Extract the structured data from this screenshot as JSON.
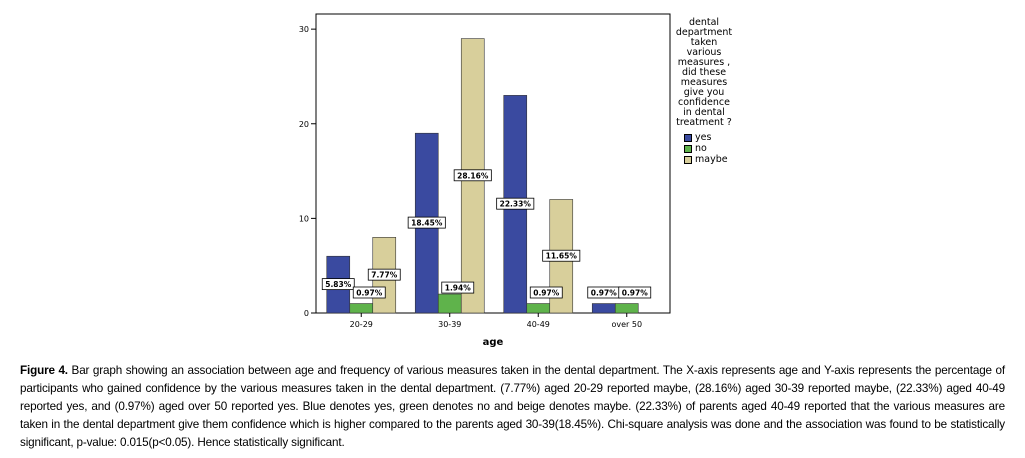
{
  "chart_data": {
    "type": "bar",
    "xlabel": "age",
    "ylabel": "",
    "ylim": [
      0,
      30
    ],
    "yticks": [
      0,
      10,
      20,
      30
    ],
    "categories": [
      "20-29",
      "30-39",
      "40-49",
      "over 50"
    ],
    "series": [
      {
        "name": "yes",
        "color": "#3a4aa0",
        "values": [
          6,
          19,
          23,
          1
        ],
        "labels": [
          "5.83%",
          "18.45%",
          "22.33%",
          "0.97%"
        ]
      },
      {
        "name": "no",
        "color": "#5fb34b",
        "values": [
          1,
          2,
          1,
          1
        ],
        "labels": [
          "0.97%",
          "1.94%",
          "0.97%",
          "0.97%"
        ]
      },
      {
        "name": "maybe",
        "color": "#d8cf9b",
        "values": [
          8,
          29,
          12,
          0
        ],
        "labels": [
          "7.77%",
          "28.16%",
          "11.65%",
          ""
        ]
      }
    ],
    "legend_title": "dental department taken various measures , did these measures give you confidence in dental treatment ?",
    "legend_title_lines": [
      "dental",
      "department",
      "taken",
      "various",
      "measures ,",
      "did these",
      "measures",
      "give you",
      "confidence",
      "in dental",
      "treatment ?"
    ],
    "legend_position": "right"
  },
  "caption": {
    "label": "Figure 4.",
    "text": " Bar graph showing an association between age and frequency of various measures taken in the dental department. The X-axis represents age and Y-axis represents the percentage of participants who gained confidence by the various measures taken in the dental department. (7.77%) aged 20-29 reported maybe, (28.16%) aged 30-39 reported maybe, (22.33%) aged 40-49 reported yes, and (0.97%) aged over 50 reported yes. Blue denotes yes, green denotes no and beige denotes maybe. (22.33%) of parents aged 40-49 reported that the various measures are taken in the dental department give them confidence which is higher compared to the parents aged 30-39(18.45%). Chi-square analysis was done and the association was found to be statistically significant, p-value: 0.015(p<0.05). Hence statistically significant."
  }
}
